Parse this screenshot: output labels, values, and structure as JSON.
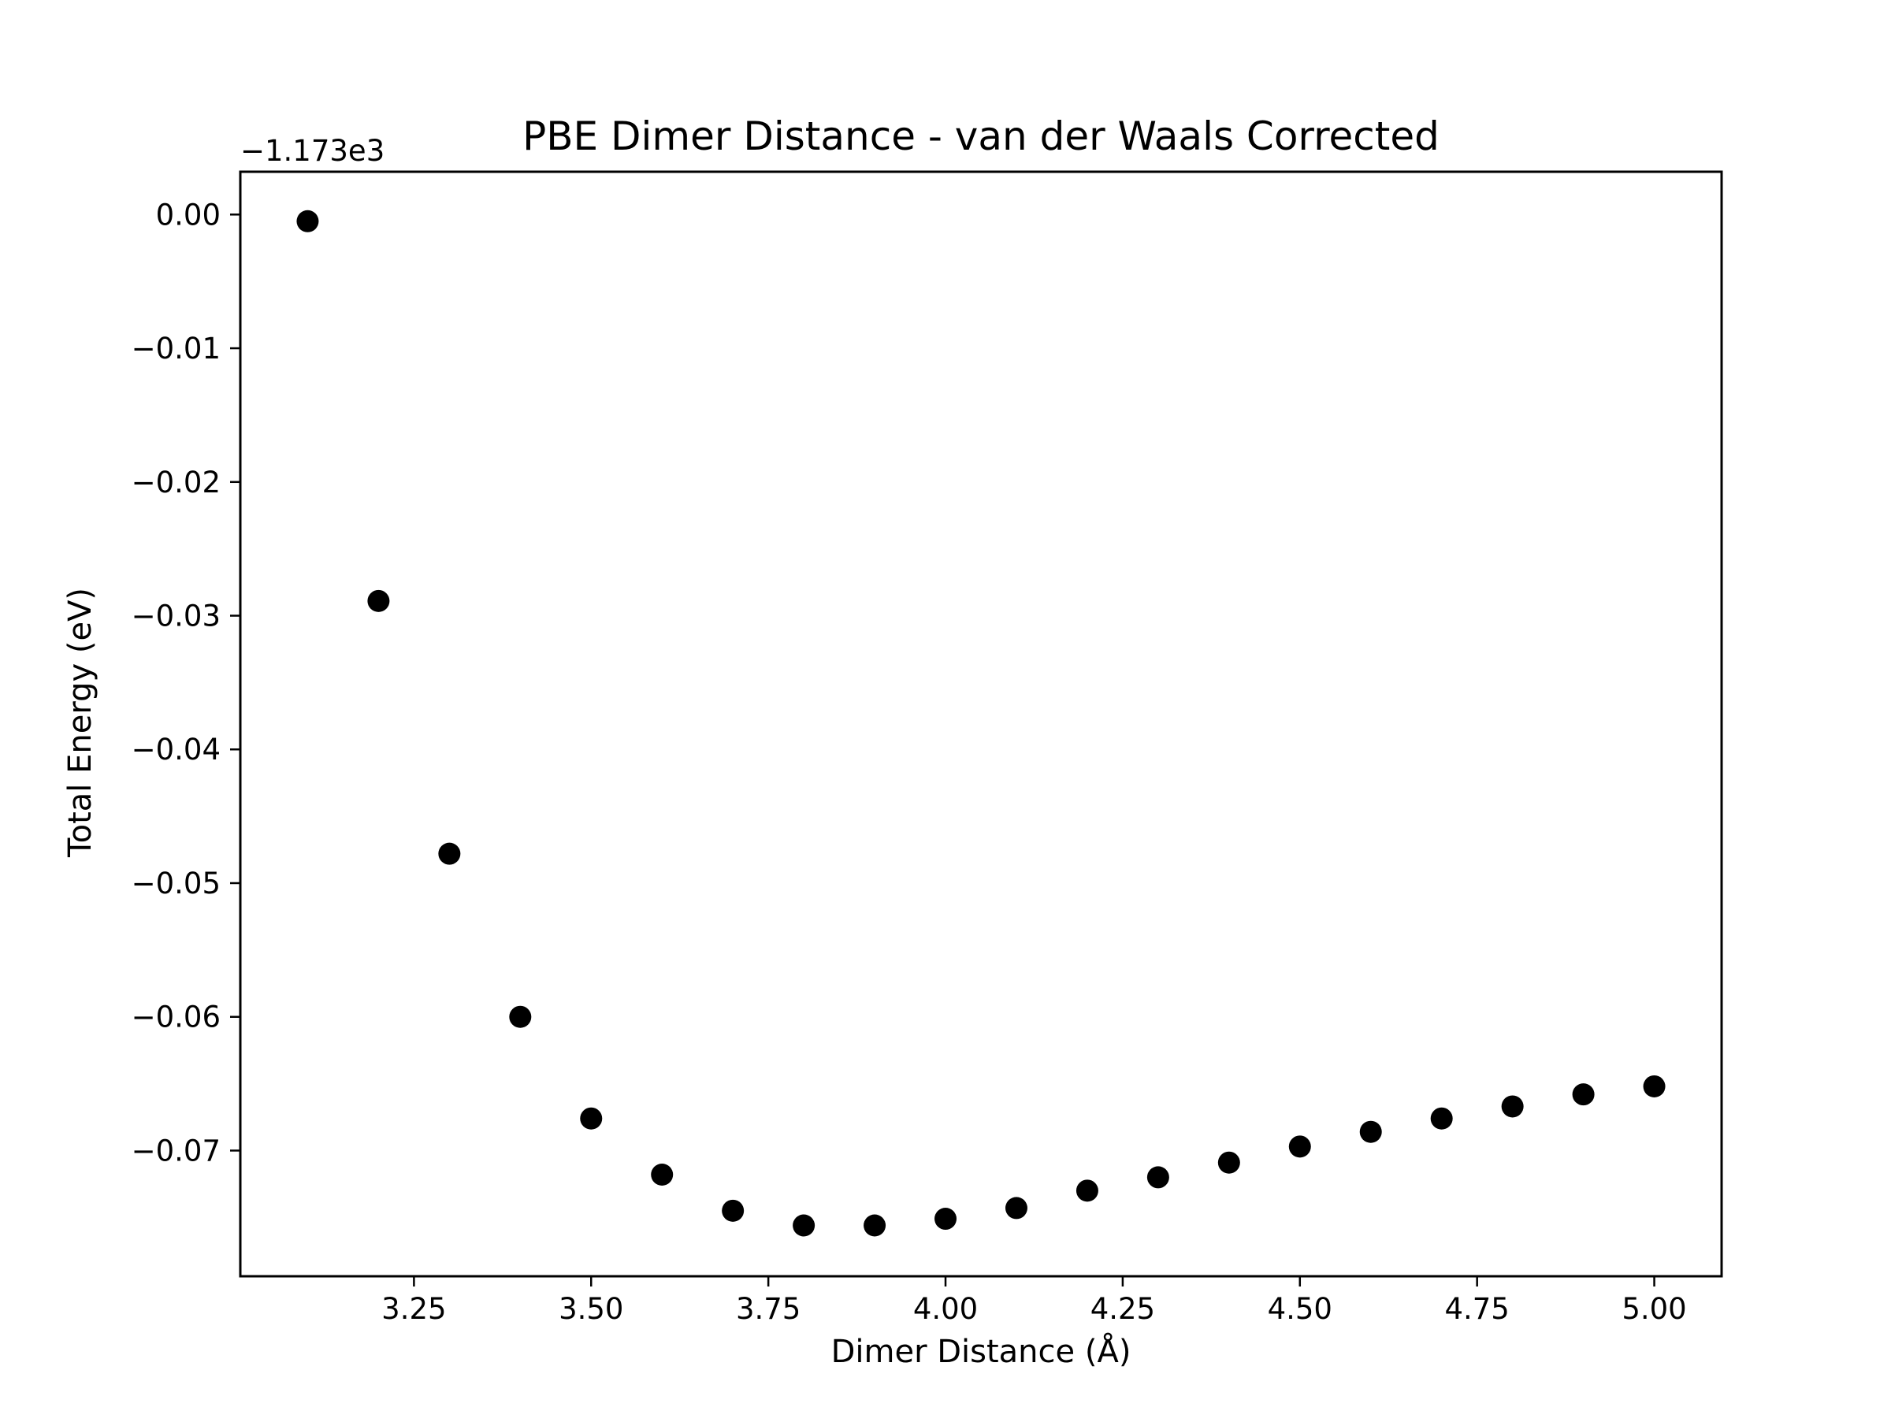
{
  "chart_data": {
    "type": "scatter",
    "title": "PBE Dimer Distance - van der Waals Corrected",
    "xlabel": "Dimer Distance (Å)",
    "ylabel": "Total Energy (eV)",
    "y_offset_label": "−1.173e3",
    "y_offset": -1173,
    "xlim": [
      3.005,
      5.095
    ],
    "ylim": [
      -0.0794,
      0.0032
    ],
    "x_ticks": [
      3.25,
      3.5,
      3.75,
      4.0,
      4.25,
      4.5,
      4.75,
      5.0
    ],
    "x_tick_labels": [
      "3.25",
      "3.50",
      "3.75",
      "4.00",
      "4.25",
      "4.50",
      "4.75",
      "5.00"
    ],
    "y_ticks": [
      0.0,
      -0.01,
      -0.02,
      -0.03,
      -0.04,
      -0.05,
      -0.06,
      -0.07
    ],
    "y_tick_labels": [
      "0.00",
      "−0.01",
      "−0.02",
      "−0.03",
      "−0.04",
      "−0.05",
      "−0.06",
      "−0.07"
    ],
    "grid": false,
    "marker_color": "#000000",
    "series": [
      {
        "x": [
          3.1,
          3.2,
          3.3,
          3.4,
          3.5,
          3.6,
          3.7,
          3.8,
          3.9,
          4.0,
          4.1,
          4.2,
          4.3,
          4.4,
          4.5,
          4.6,
          4.7,
          4.8,
          4.9,
          5.0
        ],
        "y": [
          -0.0005,
          -0.0289,
          -0.0478,
          -0.06,
          -0.0676,
          -0.0718,
          -0.0745,
          -0.0756,
          -0.0756,
          -0.0751,
          -0.0743,
          -0.073,
          -0.072,
          -0.0709,
          -0.0697,
          -0.0686,
          -0.0676,
          -0.0667,
          -0.0658,
          -0.0652
        ]
      }
    ]
  }
}
